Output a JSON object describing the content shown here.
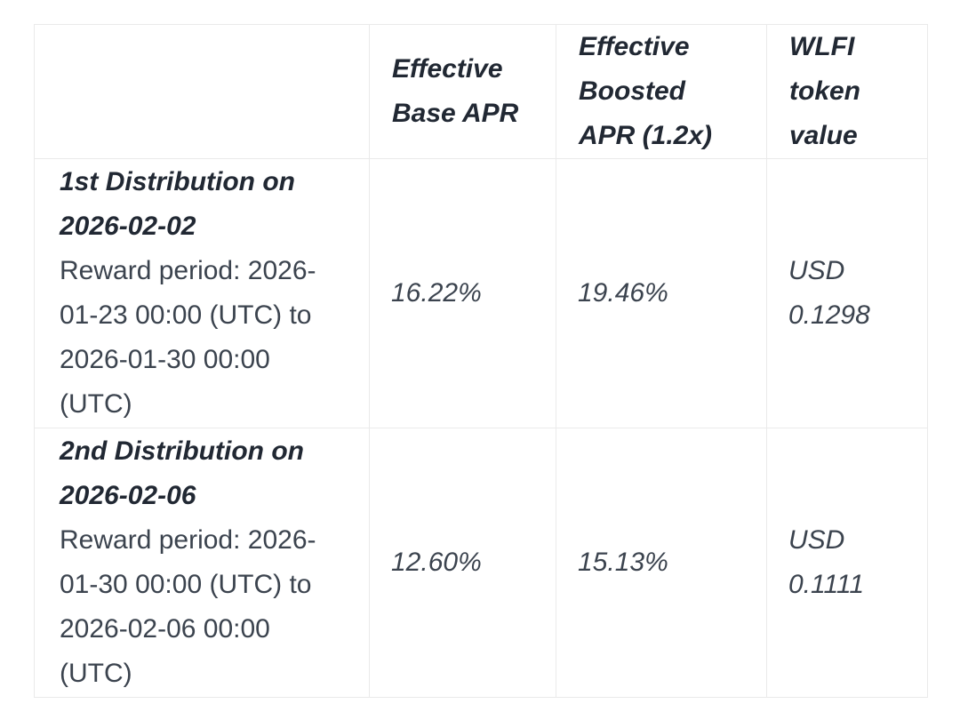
{
  "page": {
    "background_color": "#ffffff"
  },
  "table": {
    "border_color": "#eaeaea",
    "header_text_color": "#212833",
    "body_text_color": "#3b434e",
    "columns": [
      "",
      "Effective Base APR",
      "Effective Boosted APR (1.2x)",
      "WLFI token value"
    ],
    "rows": [
      {
        "title": "1st Distribution on 2026-02-02",
        "reward_period": "Reward period: 2026-01-23 00:00 (UTC) to 2026-01-30 00:00 (UTC)",
        "effective_base_apr": "16.22%",
        "effective_boosted_apr": "19.46%",
        "wlfi_token_value": "USD 0.1298"
      },
      {
        "title": "2nd Distribution on 2026-02-06",
        "reward_period": "Reward period: 2026-01-30 00:00 (UTC) to 2026-02-06 00:00 (UTC)",
        "effective_base_apr": "12.60%",
        "effective_boosted_apr": "15.13%",
        "wlfi_token_value": "USD 0.1111"
      }
    ]
  }
}
